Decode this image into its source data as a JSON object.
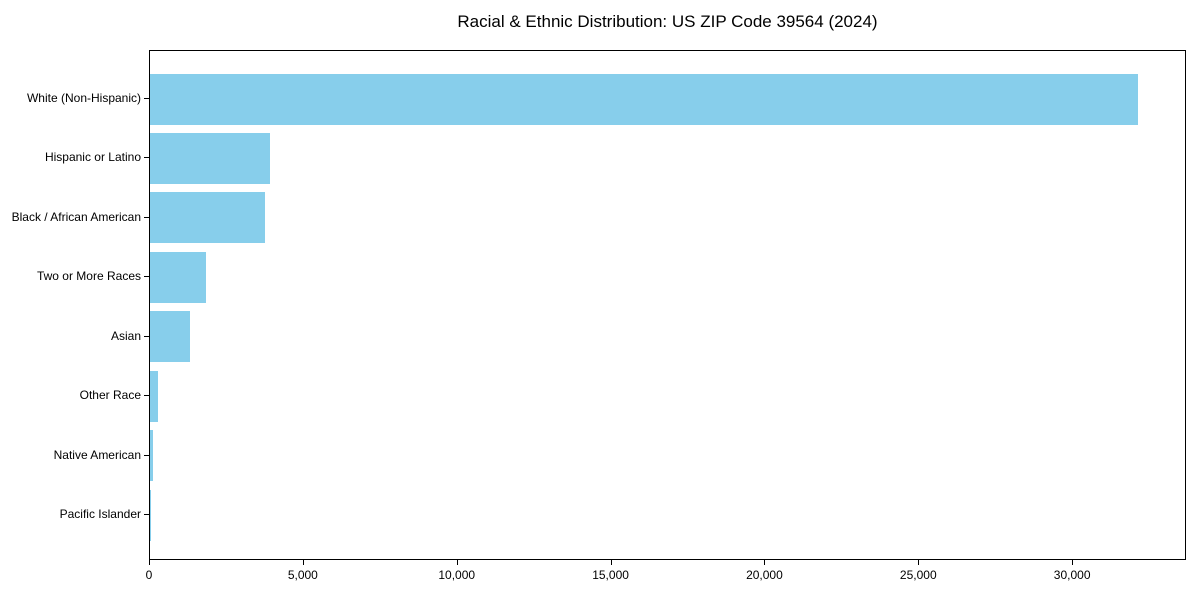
{
  "chart_data": {
    "type": "bar",
    "orientation": "horizontal",
    "title": "Racial & Ethnic Distribution: US ZIP Code 39564 (2024)",
    "categories": [
      "White (Non-Hispanic)",
      "Hispanic or Latino",
      "Black / African American",
      "Two or More Races",
      "Asian",
      "Other Race",
      "Native American",
      "Pacific Islander"
    ],
    "values": [
      32100,
      3900,
      3730,
      1820,
      1300,
      260,
      100,
      20
    ],
    "xlabel": "",
    "ylabel": "",
    "xlim": [
      0,
      33700
    ],
    "xtick_values": [
      0,
      5000,
      10000,
      15000,
      20000,
      25000,
      30000
    ],
    "xtick_labels": [
      "0",
      "5,000",
      "10,000",
      "15,000",
      "20,000",
      "25,000",
      "30,000"
    ],
    "bar_color": "#87ceeb",
    "grid": false,
    "legend_position": "none"
  }
}
